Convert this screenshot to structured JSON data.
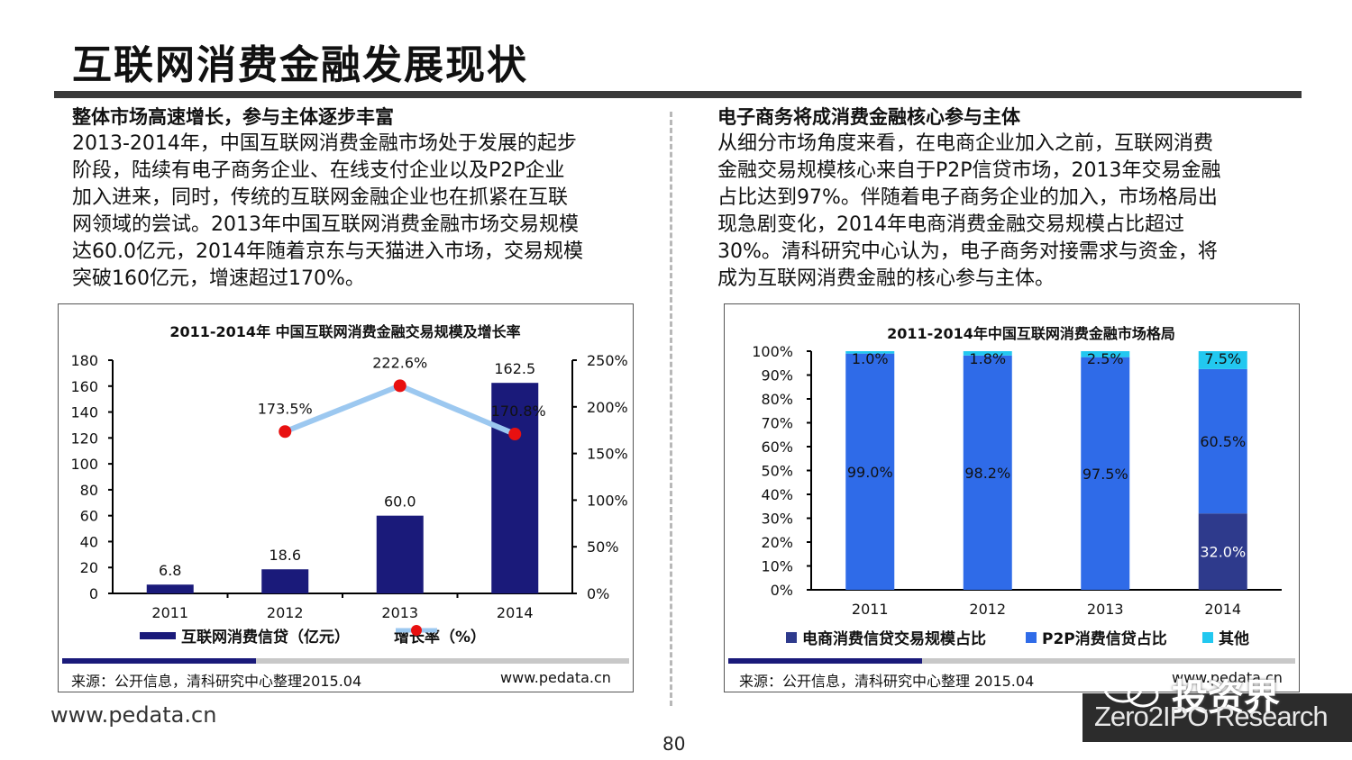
{
  "title": "互联网消费金融发展现状",
  "left": {
    "heading": "整体市场高速增长，参与主体逐步丰富",
    "lines": [
      "2013-2014年，中国互联网消费金融市场处于发展的起步",
      "阶段，陆续有电子商务企业、在线支付企业以及P2P企业",
      "加入进来，同时，传统的互联网金融企业也在抓紧在互联",
      "网领域的尝试。2013年中国互联网消费金融市场交易规模",
      "达60.0亿元，2014年随着京东与天猫进入市场，交易规模",
      "突破160亿元，增速超过170%。"
    ]
  },
  "right": {
    "heading": "电子商务将成消费金融核心参与主体",
    "lines": [
      "从细分市场角度来看，在电商企业加入之前，互联网消费",
      "金融交易规模核心来自于P2P信贷市场，2013年交易金融",
      "占比达到97%。伴随着电子商务企业的加入，市场格局出",
      "现急剧变化，2014年电商消费金融交易规模占比超过",
      "30%。清科研究中心认为，电子商务对接需求与资金，将",
      "成为互联网消费金融的核心参与主体。"
    ]
  },
  "chart_data": [
    {
      "type": "bar",
      "title": "2011-2014年 中国互联网消费金融交易规模及增长率",
      "categories": [
        "2011",
        "2012",
        "2013",
        "2014"
      ],
      "series": [
        {
          "name": "互联网消费信贷（亿元）",
          "type": "bar",
          "axis": "left",
          "values": [
            6.8,
            18.6,
            60.0,
            162.5
          ],
          "labels": [
            "6.8",
            "18.6",
            "60.0",
            "162.5"
          ],
          "color": "#1a1a7a"
        },
        {
          "name": "增长率（%）",
          "type": "line",
          "axis": "right",
          "values": [
            null,
            173.5,
            222.6,
            170.8
          ],
          "labels": [
            "",
            "173.5%",
            "222.6%",
            "170.8%"
          ],
          "color": "#9cc8f0",
          "marker_color": "#e81010"
        }
      ],
      "y_left": {
        "min": 0,
        "max": 180,
        "ticks": [
          "0",
          "20",
          "40",
          "60",
          "80",
          "100",
          "120",
          "140",
          "160",
          "180"
        ]
      },
      "y_right": {
        "min": 0,
        "max": 250,
        "ticks": [
          "0%",
          "50%",
          "100%",
          "150%",
          "200%",
          "250%"
        ]
      }
    },
    {
      "type": "bar",
      "stacked": true,
      "title": "2011-2014年中国互联网消费金融市场格局",
      "categories": [
        "2011",
        "2012",
        "2013",
        "2014"
      ],
      "series": [
        {
          "name": "电商消费信贷交易规模占比",
          "values": [
            0,
            0,
            0,
            32.0
          ],
          "labels": [
            "",
            "",
            "",
            "32.0%"
          ],
          "color": "#2e3a8c"
        },
        {
          "name": "P2P消费信贷占比",
          "values": [
            99.0,
            98.2,
            97.5,
            60.5
          ],
          "labels": [
            "99.0%",
            "98.2%",
            "97.5%",
            "60.5%"
          ],
          "color": "#2f6be8"
        },
        {
          "name": "其他",
          "values": [
            1.0,
            1.8,
            2.5,
            7.5
          ],
          "labels": [
            "1.0%",
            "1.8%",
            "2.5%",
            "7.5%"
          ],
          "color": "#22c8f0"
        }
      ],
      "ylim": [
        0,
        100
      ],
      "y_ticks": [
        "0%",
        "10%",
        "20%",
        "30%",
        "40%",
        "50%",
        "60%",
        "70%",
        "80%",
        "90%",
        "100%"
      ]
    }
  ],
  "chart1_source": "来源：公开信息，清科研究中心整理2015.04",
  "chart1_url": "www.pedata.cn",
  "chart2_source": "来源：公开信息，清科研究中心整理 2015.04",
  "chart2_url": "www.pedata.cn",
  "footer_url": "www.pedata.cn",
  "page_number": "80",
  "watermark": {
    "cn": "投资界",
    "en": "Zero2IPO Research"
  }
}
